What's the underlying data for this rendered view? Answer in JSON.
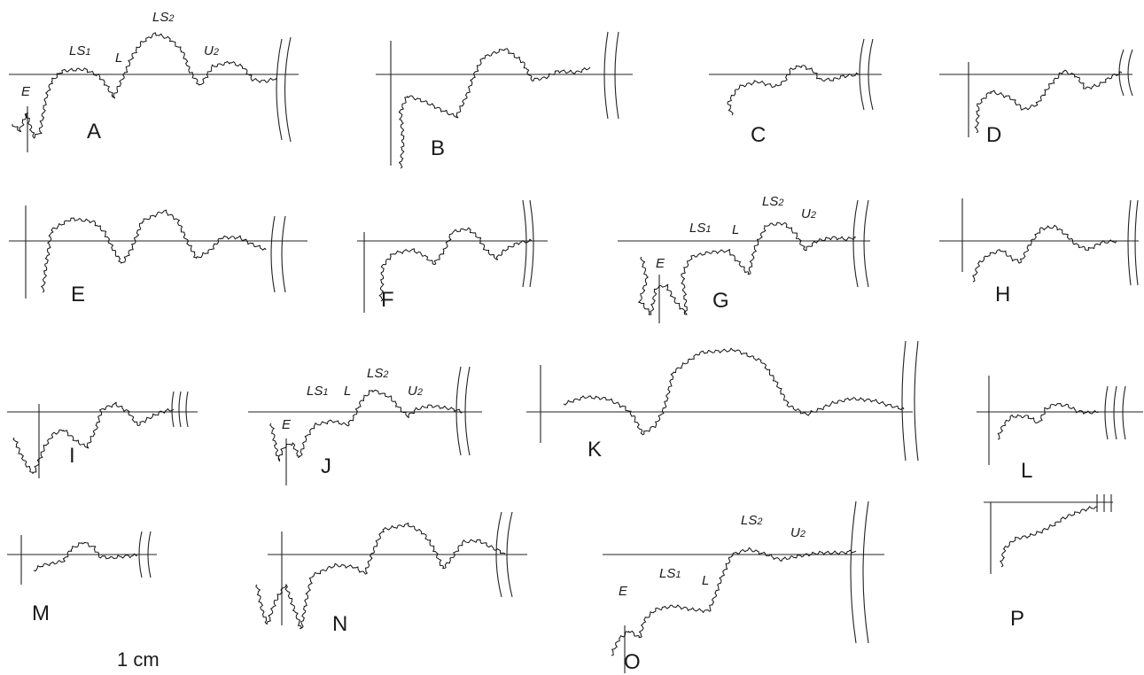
{
  "figure": {
    "scale_label": "1 cm",
    "lobe_labels": [
      "E",
      "LS1",
      "L",
      "LS2",
      "U2"
    ],
    "panels": [
      {
        "id": "A",
        "label": "A",
        "annotated": true
      },
      {
        "id": "B",
        "label": "B",
        "annotated": false
      },
      {
        "id": "C",
        "label": "C",
        "annotated": false
      },
      {
        "id": "D",
        "label": "D",
        "annotated": false
      },
      {
        "id": "E",
        "label": "E",
        "annotated": false
      },
      {
        "id": "F",
        "label": "F",
        "annotated": false
      },
      {
        "id": "G",
        "label": "G",
        "annotated": true
      },
      {
        "id": "H",
        "label": "H",
        "annotated": false
      },
      {
        "id": "I",
        "label": "I",
        "annotated": false
      },
      {
        "id": "J",
        "label": "J",
        "annotated": true
      },
      {
        "id": "K",
        "label": "K",
        "annotated": false
      },
      {
        "id": "L",
        "label": "L",
        "annotated": false
      },
      {
        "id": "M",
        "label": "M",
        "annotated": false
      },
      {
        "id": "N",
        "label": "N",
        "annotated": false
      },
      {
        "id": "O",
        "label": "O",
        "annotated": true
      },
      {
        "id": "P",
        "label": "P",
        "annotated": false
      }
    ]
  }
}
